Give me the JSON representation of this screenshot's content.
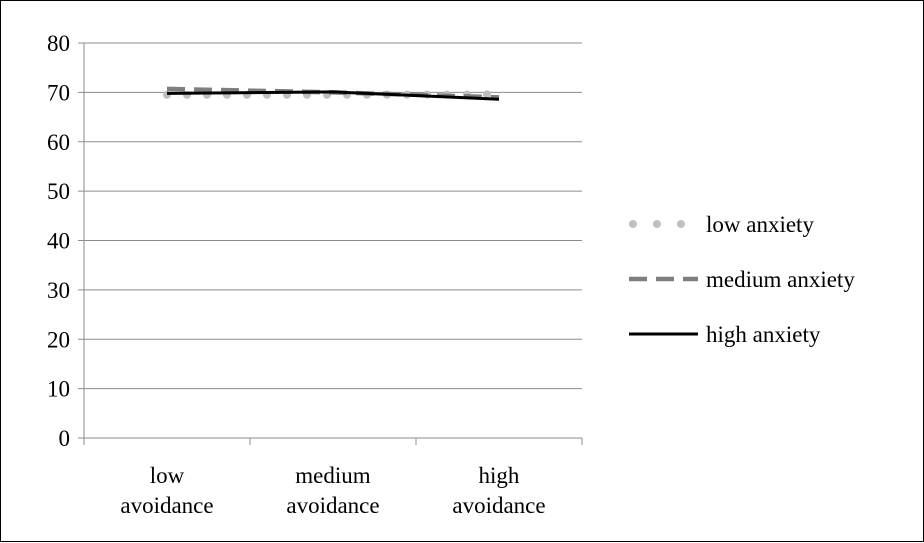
{
  "chart_data": {
    "type": "line",
    "categories": [
      [
        "low",
        "avoidance"
      ],
      [
        "medium",
        "avoidance"
      ],
      [
        "high",
        "avoidance"
      ]
    ],
    "series": [
      {
        "name": "low anxiety",
        "values": [
          69.5,
          69.5,
          69.6
        ],
        "color": "#bfbfbf",
        "style": "dotted"
      },
      {
        "name": "medium anxiety",
        "values": [
          70.7,
          70.0,
          69.0
        ],
        "color": "#7f7f7f",
        "style": "dashed"
      },
      {
        "name": "high anxiety",
        "values": [
          69.8,
          70.1,
          68.6
        ],
        "color": "#000000",
        "style": "solid"
      }
    ],
    "yticks": [
      "0",
      "10",
      "20",
      "30",
      "40",
      "50",
      "60",
      "70",
      "80"
    ],
    "ylim": [
      0,
      80
    ],
    "grid": true,
    "legend_position": "right"
  }
}
